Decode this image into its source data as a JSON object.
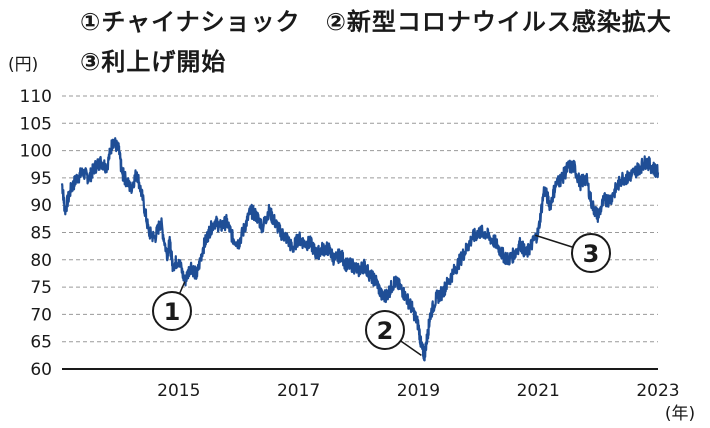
{
  "header": {
    "line1": "①チャイナショック　②新型コロナウイルス感染拡大",
    "line2": "③利上げ開始"
  },
  "chart_data": {
    "type": "line",
    "y_unit": "(円)",
    "x_unit": "(年)",
    "ylim": [
      60,
      110
    ],
    "yticks": [
      60,
      65,
      70,
      75,
      80,
      85,
      90,
      95,
      100,
      105,
      110
    ],
    "xlim": [
      2013.05,
      2023.0
    ],
    "xticks": [
      {
        "value": 2015,
        "label": "2015"
      },
      {
        "value": 2017,
        "label": "2017"
      },
      {
        "value": 2019,
        "label": "2019"
      },
      {
        "value": 2021,
        "label": "2021"
      },
      {
        "value": 2023,
        "label": "2023"
      }
    ],
    "grid": true,
    "series": [
      {
        "color": "#1f4e96",
        "x": [
          2013.05,
          2013.1,
          2013.2,
          2013.3,
          2013.4,
          2013.5,
          2013.6,
          2013.7,
          2013.8,
          2013.9,
          2014.0,
          2014.05,
          2014.1,
          2014.2,
          2014.3,
          2014.4,
          2014.5,
          2014.6,
          2014.7,
          2014.8,
          2014.85,
          2014.9,
          2015.0,
          2015.1,
          2015.2,
          2015.3,
          2015.4,
          2015.5,
          2015.6,
          2015.7,
          2015.8,
          2015.9,
          2016.0,
          2016.1,
          2016.2,
          2016.3,
          2016.4,
          2016.5,
          2016.6,
          2016.7,
          2016.8,
          2016.9,
          2017.0,
          2017.1,
          2017.2,
          2017.3,
          2017.4,
          2017.5,
          2017.6,
          2017.7,
          2017.8,
          2017.9,
          2018.0,
          2018.1,
          2018.2,
          2018.3,
          2018.4,
          2018.5,
          2018.6,
          2018.7,
          2018.8,
          2018.9,
          2019.0,
          2019.05,
          2019.1,
          2019.15,
          2019.2,
          2019.3,
          2019.4,
          2019.5,
          2019.6,
          2019.7,
          2019.8,
          2019.9,
          2020.0,
          2020.1,
          2020.2,
          2020.3,
          2020.4,
          2020.5,
          2020.6,
          2020.7,
          2020.8,
          2020.9,
          2021.0,
          2021.1,
          2021.2,
          2021.3,
          2021.4,
          2021.5,
          2021.6,
          2021.7,
          2021.8,
          2021.9,
          2022.0,
          2022.1,
          2022.2,
          2022.3,
          2022.4,
          2022.5,
          2022.6,
          2022.7,
          2022.8,
          2022.9,
          2023.0
        ],
        "values": [
          94,
          89,
          93,
          95,
          96,
          95,
          97,
          98,
          97,
          102,
          100,
          96,
          95,
          93,
          96,
          91,
          85,
          84,
          87,
          81,
          83,
          79,
          80,
          76,
          79,
          77,
          82,
          85,
          87,
          86,
          87,
          84,
          83,
          86,
          89,
          88,
          86,
          89,
          87,
          85,
          84,
          82,
          84,
          83,
          83,
          81,
          82,
          82,
          80,
          81,
          79,
          79,
          78,
          79,
          77,
          76,
          73,
          74,
          76,
          75,
          73,
          71,
          68,
          64,
          62.5,
          66,
          70,
          73,
          74,
          76,
          78,
          80,
          82,
          84,
          85,
          85,
          84,
          83,
          81,
          80,
          81,
          83,
          81,
          83,
          85,
          93,
          90,
          94,
          95,
          97,
          97,
          94,
          95,
          90,
          88,
          91,
          91,
          93,
          95,
          95,
          96,
          97,
          98,
          97,
          96
        ]
      }
    ],
    "annotations": [
      {
        "label": "1",
        "x": 2015.1,
        "y": 76
      },
      {
        "label": "2",
        "x": 2019.05,
        "y": 62.5
      },
      {
        "label": "3",
        "x": 2020.95,
        "y": 84.5
      }
    ]
  }
}
